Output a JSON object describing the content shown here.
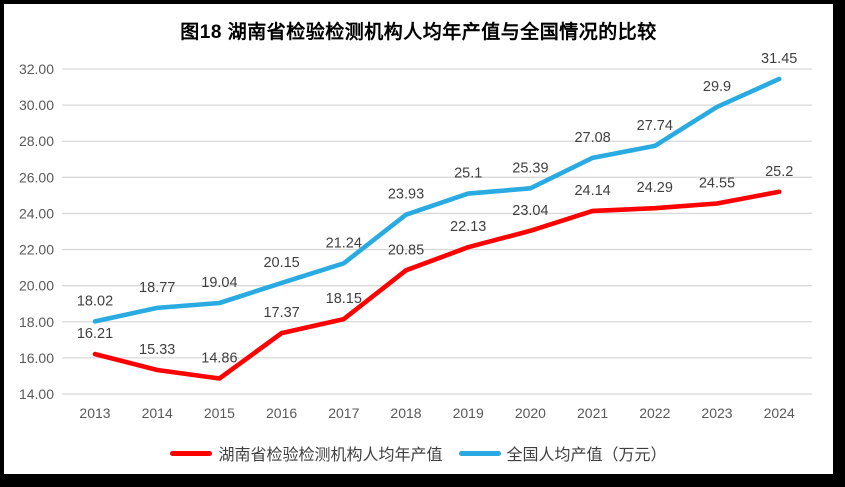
{
  "chart_data": {
    "type": "line",
    "title": "图18 湖南省检验检测机构人均年产值与全国情况的比较",
    "categories": [
      "2013",
      "2014",
      "2015",
      "2016",
      "2017",
      "2018",
      "2019",
      "2020",
      "2021",
      "2022",
      "2023",
      "2024"
    ],
    "series": [
      {
        "name": "湖南省检验检测机构人均年产值",
        "color": "#FF0000",
        "values": [
          16.21,
          15.33,
          14.86,
          17.37,
          18.15,
          20.85,
          22.13,
          23.04,
          24.14,
          24.29,
          24.55,
          25.2
        ]
      },
      {
        "name": "全国人均产值（万元）",
        "color": "#29ABE2",
        "values": [
          18.02,
          18.77,
          19.04,
          20.15,
          21.24,
          23.93,
          25.1,
          25.39,
          27.08,
          27.74,
          29.9,
          31.45
        ]
      }
    ],
    "ylim": [
      14,
      32
    ],
    "ytick_step": 2,
    "ytick_labels": [
      "32.00",
      "30.00",
      "28.00",
      "26.00",
      "24.00",
      "22.00",
      "20.00",
      "18.00",
      "16.00",
      "14.00"
    ],
    "grid": true,
    "show_data_labels": true,
    "legend_position": "bottom",
    "xlabel": "",
    "ylabel": ""
  },
  "styles": {
    "grid_color": "#D9D9D9",
    "axis_text_color": "#595959",
    "data_label_color": "#404040",
    "frame_border_color": "#000000",
    "background_color": "#FFFFFF"
  }
}
